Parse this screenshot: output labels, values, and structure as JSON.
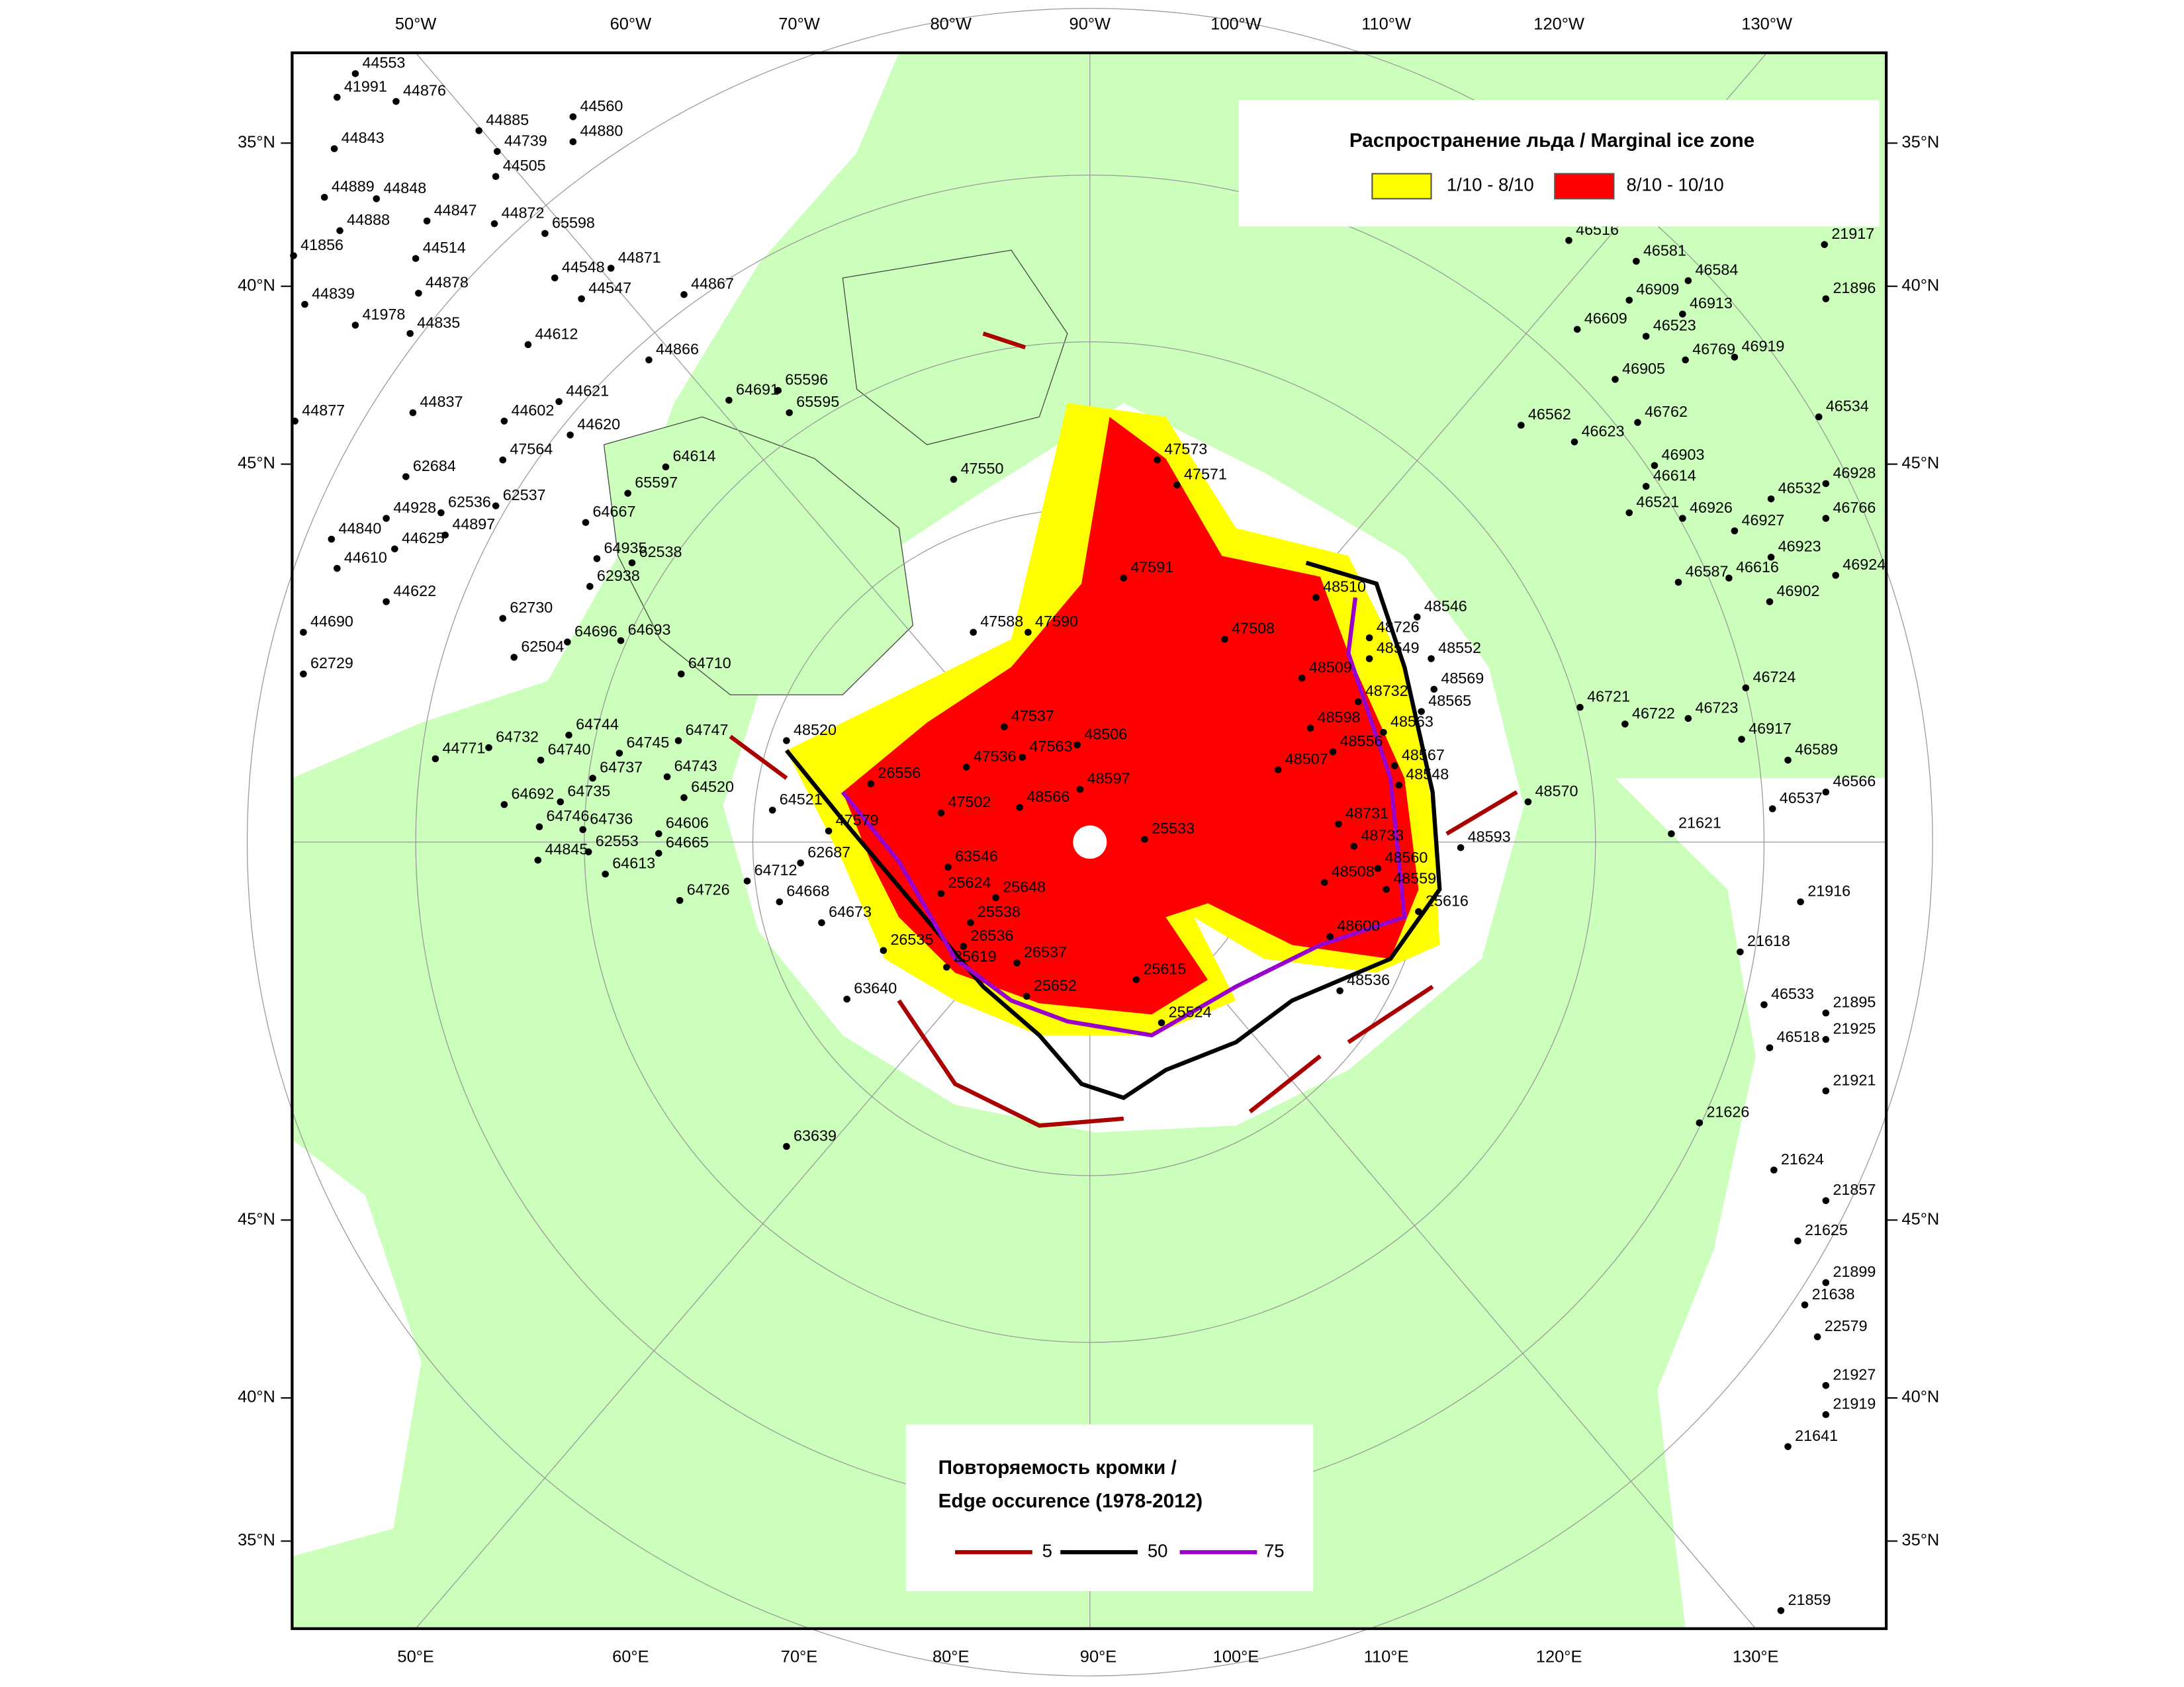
{
  "map": {
    "lon_top": [
      "50°W",
      "60°W",
      "70°W",
      "80°W",
      "90°W",
      "100°W",
      "110°W",
      "120°W",
      "130°W"
    ],
    "lon_bottom": [
      "50°E",
      "60°E",
      "70°E",
      "80°E",
      "90°E",
      "100°E",
      "110°E",
      "120°E",
      "130°E"
    ],
    "lat_left": [
      "35°N",
      "40°N",
      "45°N",
      "45°N",
      "40°N",
      "35°N"
    ],
    "lat_right": [
      "35°N",
      "40°N",
      "45°N",
      "45°N",
      "40°N",
      "35°N"
    ]
  },
  "legend_ice": {
    "title": "Распространение льда / Marginal ice zone",
    "items": [
      {
        "label": "1/10 - 8/10",
        "color": "#ffff00"
      },
      {
        "label": "8/10 - 10/10",
        "color": "#ff0000"
      }
    ]
  },
  "legend_edge": {
    "title_line1": "Повторяемость кромки /",
    "title_line2": "Edge occurence (1978-2012)",
    "items": [
      {
        "label": "5",
        "color": "#aa0000"
      },
      {
        "label": "50",
        "color": "#000000"
      },
      {
        "label": "75",
        "color": "#9900cc"
      }
    ]
  },
  "stations": [
    "44553",
    "41991",
    "44876",
    "44885",
    "44560",
    "44843",
    "44739",
    "44880",
    "44505",
    "44889",
    "44848",
    "44847",
    "44872",
    "65598",
    "44888",
    "41856",
    "44514",
    "44871",
    "44548",
    "44547",
    "44867",
    "44839",
    "44878",
    "41978",
    "44835",
    "44612",
    "44866",
    "65596",
    "64691",
    "65595",
    "44621",
    "44877",
    "44837",
    "44602",
    "44620",
    "47564",
    "64614",
    "62684",
    "62537",
    "65597",
    "62536",
    "44928",
    "64667",
    "44897",
    "44840",
    "44625",
    "64935",
    "62538",
    "44610",
    "62938",
    "44622",
    "62730",
    "64696",
    "64693",
    "44690",
    "62504",
    "64710",
    "62729",
    "64744",
    "64745",
    "64747",
    "44771",
    "64732",
    "64740",
    "64737",
    "64743",
    "64735",
    "64692",
    "64520",
    "64746",
    "64736",
    "64606",
    "44845",
    "62553",
    "64665",
    "64613",
    "64712",
    "64726",
    "64668",
    "62687",
    "64673",
    "64521",
    "47579",
    "48520",
    "26556",
    "63546",
    "25624",
    "25648",
    "25538",
    "26536",
    "26535",
    "25619",
    "26537",
    "25652",
    "63640",
    "25615",
    "25524",
    "63639",
    "47550",
    "47573",
    "47571",
    "47591",
    "47588",
    "47590",
    "47508",
    "47537",
    "48506",
    "47563",
    "47536",
    "48597",
    "47502",
    "48566",
    "25533",
    "48510",
    "48546",
    "48726",
    "48549",
    "48552",
    "48509",
    "48732",
    "48569",
    "48565",
    "48598",
    "48563",
    "48556",
    "48507",
    "48567",
    "48548",
    "48570",
    "48731",
    "48733",
    "48593",
    "48508",
    "48560",
    "48559",
    "25616",
    "48600",
    "48536",
    "21917",
    "46516",
    "46581",
    "46584",
    "21896",
    "46909",
    "46913",
    "46523",
    "46609",
    "46769",
    "46919",
    "46905",
    "46534",
    "46762",
    "46562",
    "46623",
    "46903",
    "46614",
    "46928",
    "46532",
    "46521",
    "46926",
    "46766",
    "46927",
    "46923",
    "46587",
    "46616",
    "46924",
    "46902",
    "46724",
    "46721",
    "46722",
    "46723",
    "46917",
    "46589",
    "46566",
    "46537",
    "21621",
    "21916",
    "21618",
    "46533",
    "21895",
    "46518",
    "21925",
    "21921",
    "21626",
    "21624",
    "21857",
    "21625",
    "21899",
    "21638",
    "22579",
    "21927",
    "21919",
    "21641",
    "21859"
  ]
}
